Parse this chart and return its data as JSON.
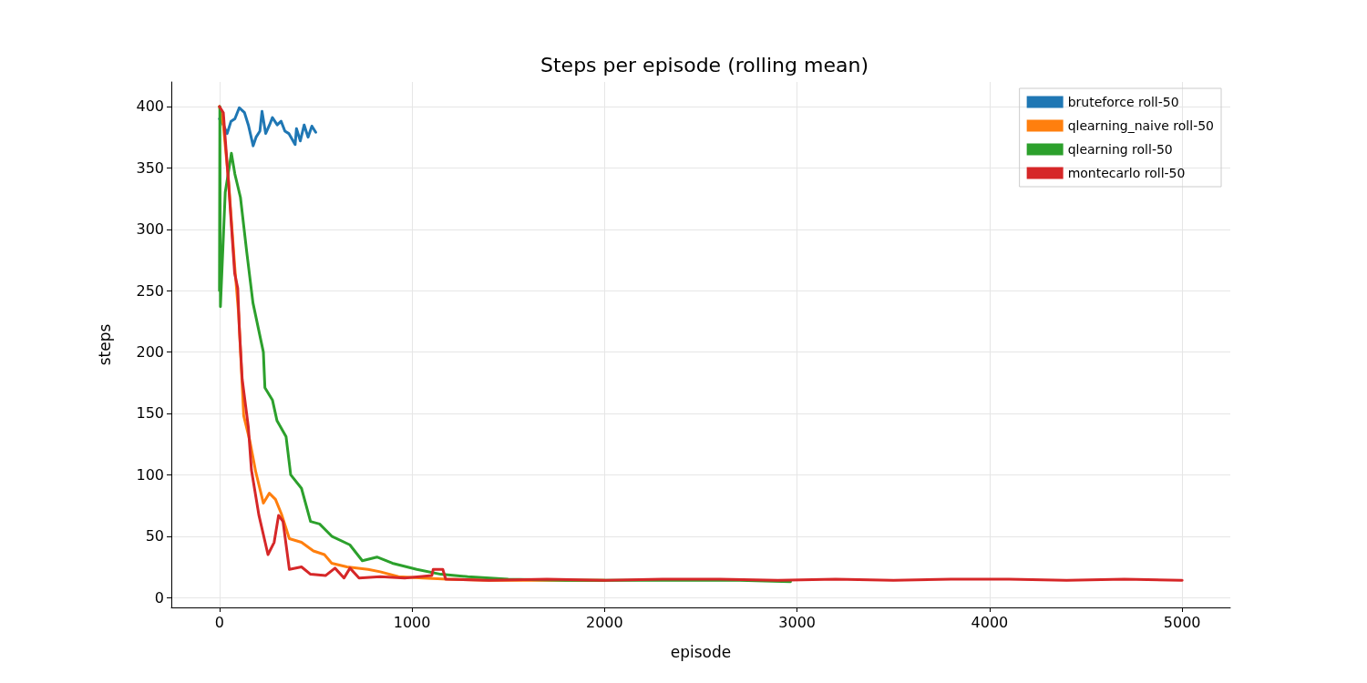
{
  "chart_data": {
    "type": "line",
    "title": "Steps per episode (rolling mean)",
    "xlabel": "episode",
    "ylabel": "steps",
    "xlim": [
      -250,
      5250
    ],
    "xticks": [
      0,
      1000,
      2000,
      3000,
      4000,
      5000
    ],
    "ylim": [
      -8,
      420
    ],
    "yticks": [
      0,
      50,
      100,
      150,
      200,
      250,
      300,
      350,
      400
    ],
    "grid": true,
    "legend": "top right",
    "marker": "none",
    "line_style": "solid",
    "series": [
      {
        "name": "bruteforce roll-50",
        "color": "#1f77b4",
        "x": [
          0,
          20,
          40,
          60,
          80,
          103,
          130,
          150,
          175,
          190,
          210,
          221,
          240,
          260,
          275,
          300,
          320,
          340,
          360,
          393,
          400,
          420,
          440,
          460,
          480,
          500
        ],
        "values": [
          390,
          385,
          378,
          388,
          390,
          399,
          395,
          385,
          368,
          375,
          380,
          396,
          378,
          385,
          391,
          385,
          388,
          380,
          378,
          369,
          382,
          372,
          385,
          375,
          384,
          379
        ]
      },
      {
        "name": "qlearning_naive roll-50",
        "color": "#ff7f0e",
        "x": [
          0,
          20,
          47,
          79,
          100,
          126,
          156,
          189,
          228,
          259,
          291,
          322,
          363,
          426,
          488,
          545,
          583,
          662,
          772,
          835,
          930,
          1056,
          1183,
          1400,
          1700,
          2000
        ],
        "values": [
          400,
          385,
          340,
          270,
          230,
          148,
          129,
          102,
          77,
          85,
          80,
          68,
          48,
          45,
          38,
          35,
          28,
          25,
          23,
          21,
          17,
          16,
          15,
          14,
          14,
          14
        ]
      },
      {
        "name": "qlearning roll-50",
        "color": "#2ca02c",
        "x": [
          0,
          2,
          5,
          30,
          50,
          62,
          80,
          109,
          142,
          174,
          228,
          236,
          275,
          299,
          346,
          370,
          426,
          473,
          520,
          583,
          677,
          742,
          818,
          898,
          1025,
          1150,
          1290,
          1500,
          1800,
          2100,
          2400,
          2700,
          2966
        ],
        "values": [
          250,
          400,
          237,
          330,
          350,
          362,
          345,
          326,
          281,
          240,
          200,
          171,
          161,
          144,
          131,
          100,
          89,
          62,
          60,
          50,
          43,
          30,
          33,
          28,
          23,
          19,
          17,
          15,
          14,
          14,
          14,
          14,
          13
        ]
      },
      {
        "name": "montecarlo roll-50",
        "color": "#d62728",
        "x": [
          0,
          20,
          47,
          79,
          95,
          103,
          118,
          150,
          166,
          205,
          252,
          284,
          307,
          330,
          363,
          426,
          473,
          552,
          600,
          647,
          678,
          725,
          835,
          962,
          1103,
          1110,
          1160,
          1175,
          1400,
          1700,
          2000,
          2300,
          2600,
          2900,
          3200,
          3500,
          3800,
          4100,
          4400,
          4700,
          5000
        ],
        "values": [
          400,
          395,
          338,
          264,
          252,
          220,
          178,
          139,
          104,
          67,
          35,
          45,
          67,
          62,
          23,
          25,
          19,
          18,
          24,
          16,
          24,
          16,
          17,
          16,
          18,
          23,
          23,
          15,
          14,
          15,
          14,
          15,
          15,
          14,
          15,
          14,
          15,
          15,
          14,
          15,
          14
        ]
      }
    ]
  }
}
